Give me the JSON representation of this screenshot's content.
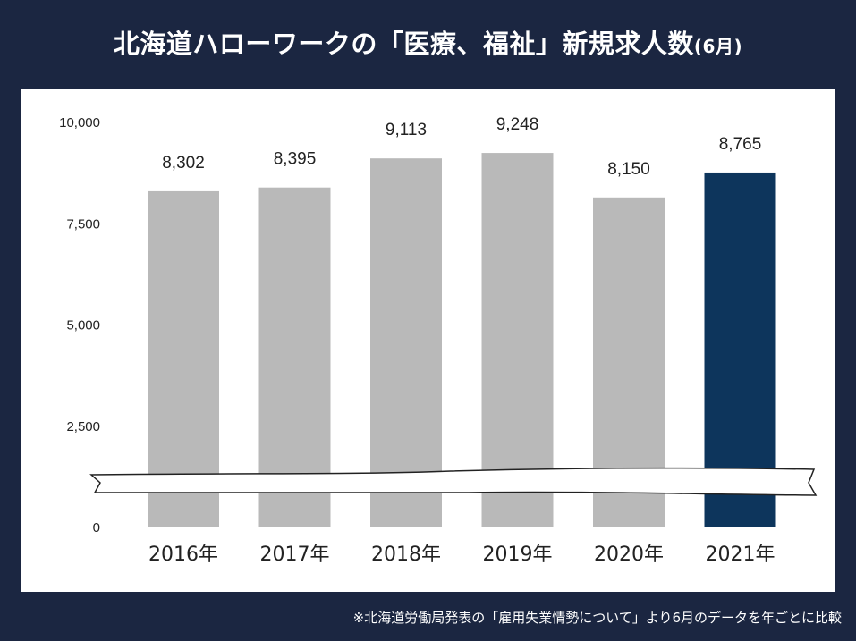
{
  "title": {
    "main": "北海道ハローワークの「医療、福祉」新規求人数",
    "suffix": "(6月)"
  },
  "footnote": "※北海道労働局発表の「雇用失業情勢について」より6月のデータを年ごとに比較",
  "colors": {
    "background": "#1b2641",
    "bar_default": "#b9b9b9",
    "bar_highlight": "#0d355c",
    "panel": "#ffffff"
  },
  "chart_data": {
    "type": "bar",
    "title": "北海道ハローワークの「医療、福祉」新規求人数(6月)",
    "categories": [
      "2016年",
      "2017年",
      "2018年",
      "2019年",
      "2020年",
      "2021年"
    ],
    "values": [
      8302,
      8395,
      9113,
      9248,
      8150,
      8765
    ],
    "value_labels": [
      "8,302",
      "8,395",
      "9,113",
      "9,248",
      "8,150",
      "8,765"
    ],
    "highlight_index": 5,
    "ylim": [
      0,
      10000
    ],
    "yticks": [
      0,
      2500,
      5000,
      7500,
      10000
    ],
    "ytick_labels": [
      "0",
      "2,500",
      "5,000",
      "7,500",
      "10,000"
    ],
    "axis_break": true,
    "grid": false,
    "xlabel": "",
    "ylabel": ""
  }
}
